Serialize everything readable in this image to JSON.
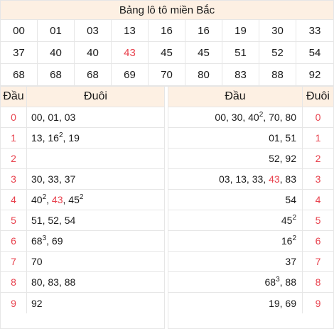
{
  "title": "Bảng lô tô miền Bắc",
  "numbers": [
    {
      "v": "00"
    },
    {
      "v": "01"
    },
    {
      "v": "03"
    },
    {
      "v": "13"
    },
    {
      "v": "16"
    },
    {
      "v": "16"
    },
    {
      "v": "19"
    },
    {
      "v": "30"
    },
    {
      "v": "33"
    },
    {
      "v": "37"
    },
    {
      "v": "40"
    },
    {
      "v": "40"
    },
    {
      "v": "43",
      "highlight": true
    },
    {
      "v": "45"
    },
    {
      "v": "45"
    },
    {
      "v": "51"
    },
    {
      "v": "52"
    },
    {
      "v": "54"
    },
    {
      "v": "68"
    },
    {
      "v": "68"
    },
    {
      "v": "68"
    },
    {
      "v": "69"
    },
    {
      "v": "70"
    },
    {
      "v": "80"
    },
    {
      "v": "83"
    },
    {
      "v": "88"
    },
    {
      "v": "92"
    }
  ],
  "highlight_color": "#e8414d",
  "header_bg": "#fdf0e3",
  "left_table": {
    "col_dau": "Đầu",
    "col_duoi": "Đuôi",
    "rows": [
      {
        "dau": "0",
        "items": [
          {
            "n": "00"
          },
          {
            "n": "01"
          },
          {
            "n": "03"
          }
        ]
      },
      {
        "dau": "1",
        "items": [
          {
            "n": "13"
          },
          {
            "n": "16",
            "sup": "2"
          },
          {
            "n": "19"
          }
        ]
      },
      {
        "dau": "2",
        "items": []
      },
      {
        "dau": "3",
        "items": [
          {
            "n": "30"
          },
          {
            "n": "33"
          },
          {
            "n": "37"
          }
        ]
      },
      {
        "dau": "4",
        "items": [
          {
            "n": "40",
            "sup": "2"
          },
          {
            "n": "43",
            "red": true
          },
          {
            "n": "45",
            "sup": "2"
          }
        ]
      },
      {
        "dau": "5",
        "items": [
          {
            "n": "51"
          },
          {
            "n": "52"
          },
          {
            "n": "54"
          }
        ]
      },
      {
        "dau": "6",
        "items": [
          {
            "n": "68",
            "sup": "3"
          },
          {
            "n": "69"
          }
        ]
      },
      {
        "dau": "7",
        "items": [
          {
            "n": "70"
          }
        ]
      },
      {
        "dau": "8",
        "items": [
          {
            "n": "80"
          },
          {
            "n": "83"
          },
          {
            "n": "88"
          }
        ]
      },
      {
        "dau": "9",
        "items": [
          {
            "n": "92"
          }
        ]
      }
    ]
  },
  "right_table": {
    "col_dau": "Đầu",
    "col_duoi": "Đuôi",
    "rows": [
      {
        "duoi": "0",
        "items": [
          {
            "n": "00"
          },
          {
            "n": "30"
          },
          {
            "n": "40",
            "sup": "2"
          },
          {
            "n": "70"
          },
          {
            "n": "80"
          }
        ]
      },
      {
        "duoi": "1",
        "items": [
          {
            "n": "01"
          },
          {
            "n": "51"
          }
        ]
      },
      {
        "duoi": "2",
        "items": [
          {
            "n": "52"
          },
          {
            "n": "92"
          }
        ]
      },
      {
        "duoi": "3",
        "items": [
          {
            "n": "03"
          },
          {
            "n": "13"
          },
          {
            "n": "33"
          },
          {
            "n": "43",
            "red": true
          },
          {
            "n": "83"
          }
        ]
      },
      {
        "duoi": "4",
        "items": [
          {
            "n": "54"
          }
        ]
      },
      {
        "duoi": "5",
        "items": [
          {
            "n": "45",
            "sup": "2"
          }
        ]
      },
      {
        "duoi": "6",
        "items": [
          {
            "n": "16",
            "sup": "2"
          }
        ]
      },
      {
        "duoi": "7",
        "items": [
          {
            "n": "37"
          }
        ]
      },
      {
        "duoi": "8",
        "items": [
          {
            "n": "68",
            "sup": "3"
          },
          {
            "n": "88"
          }
        ]
      },
      {
        "duoi": "9",
        "items": [
          {
            "n": "19"
          },
          {
            "n": "69"
          }
        ]
      }
    ]
  }
}
